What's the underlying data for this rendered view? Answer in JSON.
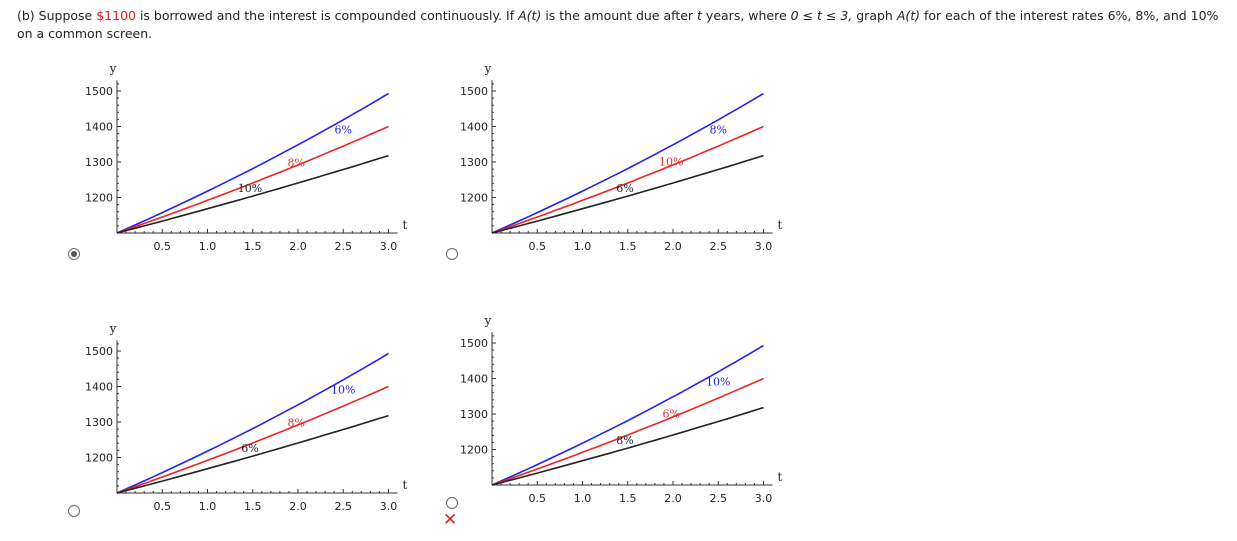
{
  "question": {
    "prefix": "(b) Suppose ",
    "amount": "$1100",
    "middle": " is borrowed and the interest is compounded continuously. If ",
    "func1": "A(t)",
    "middle2": " is the amount due after ",
    "tvar": "t",
    "middle3": " years, where ",
    "range": "0 ≤ t ≤ 3,",
    "middle4": " graph ",
    "func2": "A(t)",
    "suffix": " for each of the interest rates 6%, 8%, and 10% on a common screen."
  },
  "colors": {
    "blue": "#2222ee",
    "red": "#ee2222",
    "black": "#222222",
    "label_red": "#e03030"
  },
  "chart_data": [
    {
      "type": "line",
      "id": "option-1",
      "selected": true,
      "marked_wrong": false,
      "xlabel": "t",
      "ylabel": "y",
      "xlim": [
        0,
        3.1
      ],
      "ylim": [
        1100,
        1520
      ],
      "xticks": [
        "0.5",
        "1.0",
        "1.5",
        "2.0",
        "2.5",
        "3.0"
      ],
      "yticks": [
        "1200",
        "1300",
        "1400",
        "1500"
      ],
      "series": [
        {
          "color": "blue",
          "x": [
            0,
            3
          ],
          "y": [
            1100,
            1493
          ]
        },
        {
          "color": "red",
          "x": [
            0,
            3
          ],
          "y": [
            1100,
            1400
          ]
        },
        {
          "color": "black",
          "x": [
            0,
            3
          ],
          "y": [
            1100,
            1318
          ]
        }
      ],
      "labels": [
        {
          "text": "6%",
          "color": "blue",
          "x": 2.5,
          "y": 1380
        },
        {
          "text": "8%",
          "color": "label_red",
          "x": 1.98,
          "y": 1287
        },
        {
          "text": "10%",
          "color": "black",
          "x": 1.47,
          "y": 1216
        }
      ]
    },
    {
      "type": "line",
      "id": "option-2",
      "selected": false,
      "marked_wrong": false,
      "xlabel": "t",
      "ylabel": "y",
      "xlim": [
        0,
        3.1
      ],
      "ylim": [
        1100,
        1520
      ],
      "xticks": [
        "0.5",
        "1.0",
        "1.5",
        "2.0",
        "2.5",
        "3.0"
      ],
      "yticks": [
        "1200",
        "1300",
        "1400",
        "1500"
      ],
      "series": [
        {
          "color": "blue",
          "x": [
            0,
            3
          ],
          "y": [
            1100,
            1493
          ]
        },
        {
          "color": "red",
          "x": [
            0,
            3
          ],
          "y": [
            1100,
            1400
          ]
        },
        {
          "color": "black",
          "x": [
            0,
            3
          ],
          "y": [
            1100,
            1318
          ]
        }
      ],
      "labels": [
        {
          "text": "8%",
          "color": "blue",
          "x": 2.5,
          "y": 1380
        },
        {
          "text": "10%",
          "color": "label_red",
          "x": 1.98,
          "y": 1290
        },
        {
          "text": "6%",
          "color": "black",
          "x": 1.47,
          "y": 1216
        }
      ]
    },
    {
      "type": "line",
      "id": "option-3",
      "selected": false,
      "marked_wrong": false,
      "xlabel": "t",
      "ylabel": "y",
      "xlim": [
        0,
        3.1
      ],
      "ylim": [
        1100,
        1550
      ],
      "xticks": [
        "0.5",
        "1.0",
        "1.5",
        "2.0",
        "2.5",
        "3.0"
      ],
      "yticks": [
        "1200",
        "1300",
        "1400",
        "1500"
      ],
      "series": [
        {
          "color": "blue",
          "x": [
            0,
            3
          ],
          "y": [
            1100,
            1493
          ]
        },
        {
          "color": "red",
          "x": [
            0,
            3
          ],
          "y": [
            1100,
            1400
          ]
        },
        {
          "color": "black",
          "x": [
            0,
            3
          ],
          "y": [
            1100,
            1318
          ]
        }
      ],
      "labels": [
        {
          "text": "10%",
          "color": "blue",
          "x": 2.5,
          "y": 1380
        },
        {
          "text": "8%",
          "color": "label_red",
          "x": 1.98,
          "y": 1287
        },
        {
          "text": "6%",
          "color": "black",
          "x": 1.47,
          "y": 1216
        }
      ]
    },
    {
      "type": "line",
      "id": "option-4",
      "selected": false,
      "marked_wrong": true,
      "xlabel": "t",
      "ylabel": "y",
      "xlim": [
        0,
        3.1
      ],
      "ylim": [
        1100,
        1520
      ],
      "xticks": [
        "0.5",
        "1.0",
        "1.5",
        "2.0",
        "2.5",
        "3.0"
      ],
      "yticks": [
        "1200",
        "1300",
        "1400",
        "1500"
      ],
      "series": [
        {
          "color": "blue",
          "x": [
            0,
            3
          ],
          "y": [
            1100,
            1493
          ]
        },
        {
          "color": "red",
          "x": [
            0,
            3
          ],
          "y": [
            1100,
            1400
          ]
        },
        {
          "color": "black",
          "x": [
            0,
            3
          ],
          "y": [
            1100,
            1318
          ]
        }
      ],
      "labels": [
        {
          "text": "10%",
          "color": "blue",
          "x": 2.5,
          "y": 1380
        },
        {
          "text": "6%",
          "color": "label_red",
          "x": 1.98,
          "y": 1290
        },
        {
          "text": "8%",
          "color": "black",
          "x": 1.47,
          "y": 1216
        }
      ]
    }
  ],
  "wrong_mark": "✕"
}
